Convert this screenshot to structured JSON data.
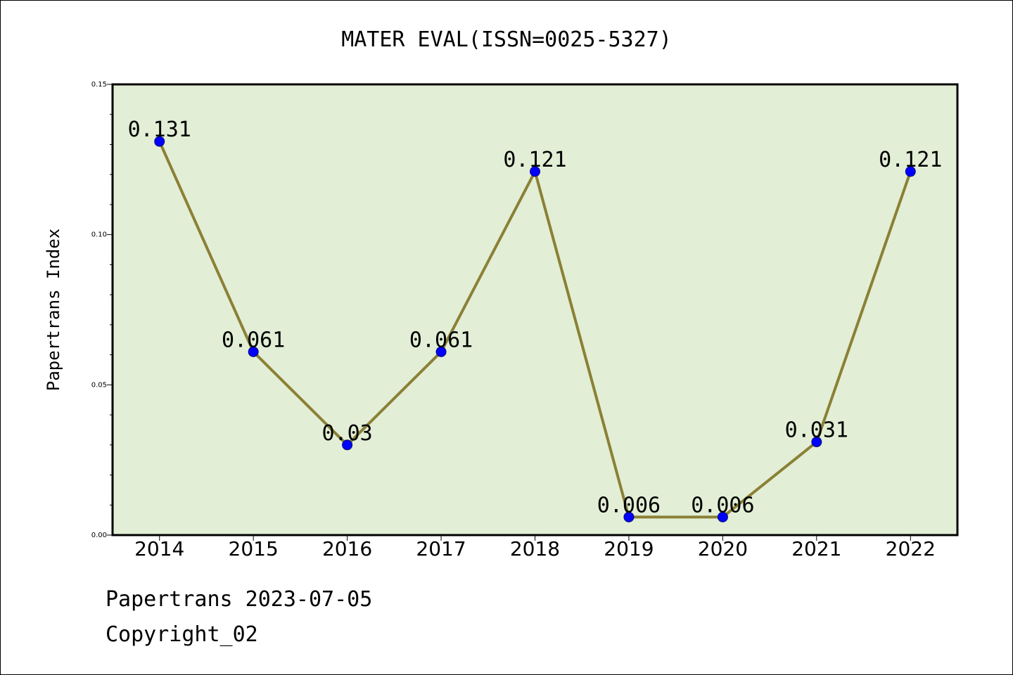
{
  "chart_data": {
    "type": "line",
    "title": "MATER EVAL(ISSN=0025-5327)",
    "xlabel": "",
    "ylabel": "Papertrans Index",
    "categories": [
      "2014",
      "2015",
      "2016",
      "2017",
      "2018",
      "2019",
      "2020",
      "2021",
      "2022"
    ],
    "values": [
      0.131,
      0.061,
      0.03,
      0.061,
      0.121,
      0.006,
      0.006,
      0.031,
      0.121
    ],
    "data_labels": [
      "0.131",
      "0.061",
      "0.03",
      "0.061",
      "0.121",
      "0.006",
      "0.006",
      "0.031",
      "0.121"
    ],
    "yticks": [
      "0.00",
      "0.05",
      "0.10",
      "0.15"
    ],
    "ylim": [
      0,
      0.15
    ],
    "grid": false,
    "colors": {
      "plot_background": "#e2efd6",
      "line": "#8b8036",
      "marker": "#0000ff",
      "marker_edge": "#0a0a6e"
    }
  },
  "footer": {
    "line1": "Papertrans 2023-07-05",
    "line2": "Copyright_02"
  }
}
